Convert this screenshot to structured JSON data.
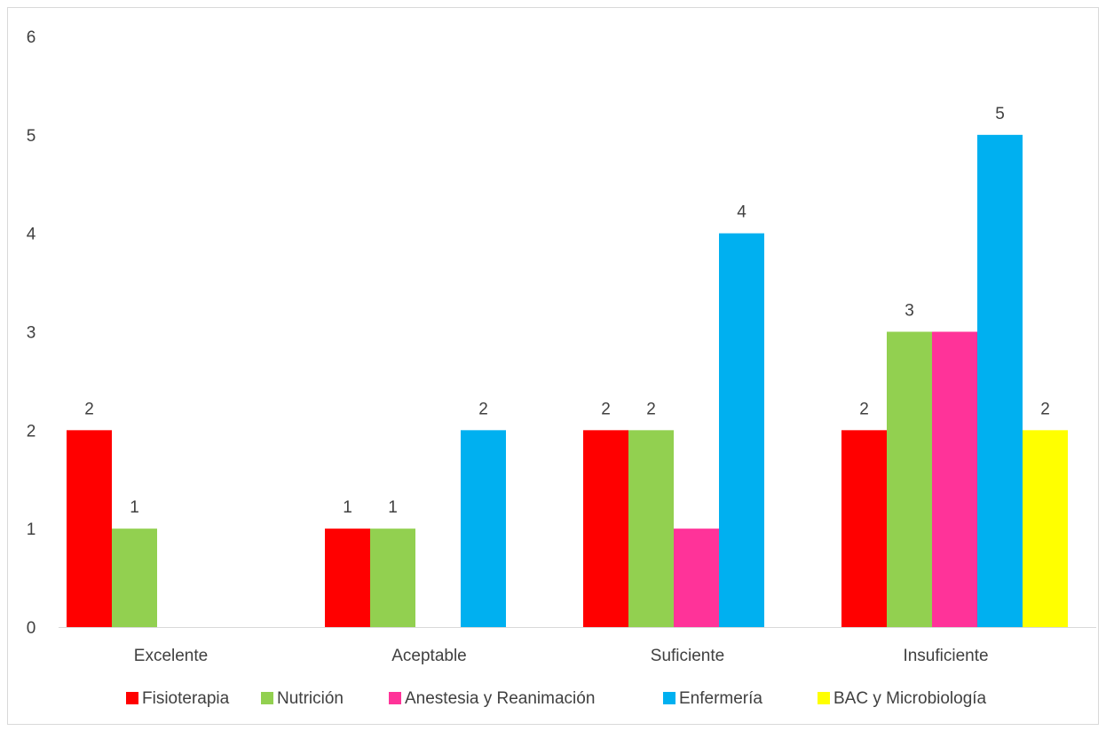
{
  "chart_data": {
    "type": "bar",
    "categories": [
      "Excelente",
      "Aceptable",
      "Suficiente",
      "Insuficiente"
    ],
    "series": [
      {
        "name": "Fisioterapia",
        "color": "#ff0000",
        "values": [
          2,
          1,
          2,
          2
        ]
      },
      {
        "name": "Nutrición",
        "color": "#92d050",
        "values": [
          1,
          1,
          2,
          3
        ]
      },
      {
        "name": "Anestesia y Reanimación",
        "color": "#ff3399",
        "values": [
          0,
          0,
          1,
          3
        ]
      },
      {
        "name": "Enfermería",
        "color": "#00b0f0",
        "values": [
          0,
          2,
          4,
          5
        ]
      },
      {
        "name": "BAC y Microbiología",
        "color": "#ffff00",
        "values": [
          0,
          0,
          0,
          2
        ]
      }
    ],
    "data_labels": [
      [
        "2",
        "1",
        "2",
        "2"
      ],
      [
        "1",
        "1",
        "2",
        "3"
      ],
      [
        "",
        "",
        "",
        ""
      ],
      [
        "",
        "2",
        "4",
        "5"
      ],
      [
        "",
        "",
        "",
        "2"
      ]
    ],
    "yticks": [
      "0",
      "1",
      "2",
      "3",
      "4",
      "5",
      "6"
    ],
    "ylim": [
      0,
      6
    ],
    "grid": false,
    "legend": "bottom",
    "title": "",
    "xlabel": "",
    "ylabel": ""
  }
}
